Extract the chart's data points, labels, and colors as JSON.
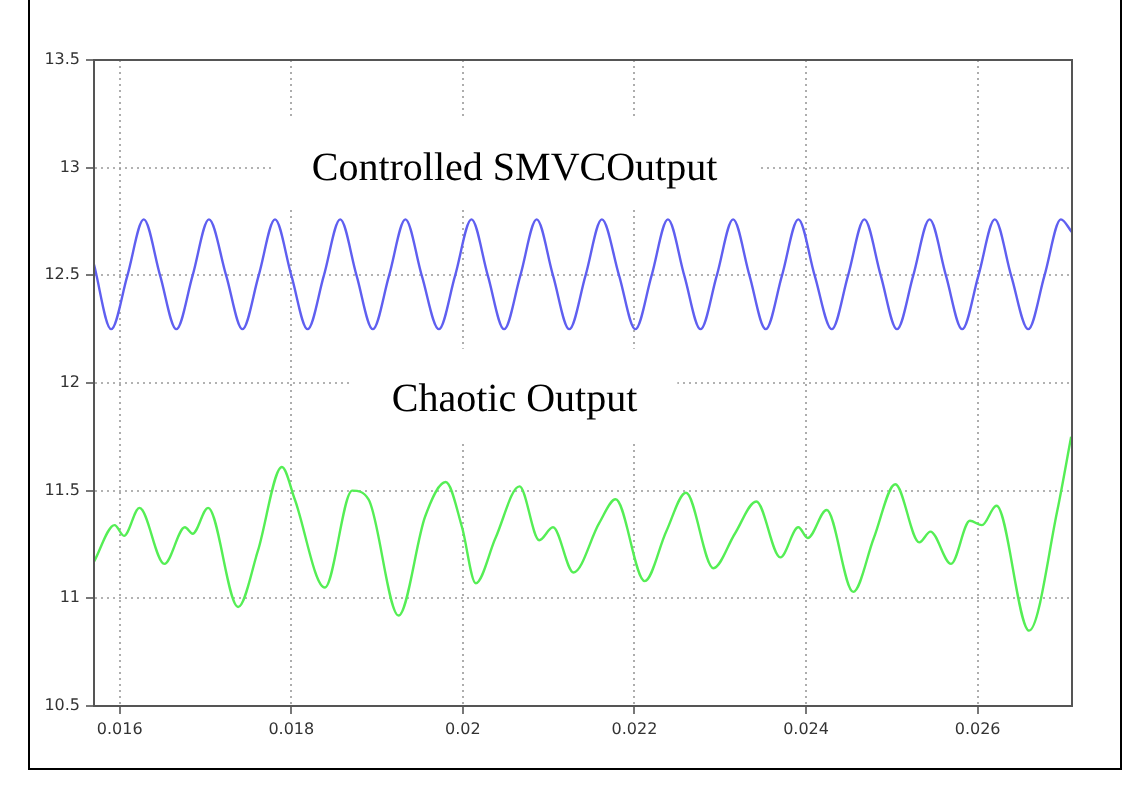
{
  "chart_data": {
    "type": "line",
    "xlim": [
      0.0157,
      0.0271
    ],
    "xticks": [
      0.016,
      0.018,
      0.02,
      0.022,
      0.024,
      0.026
    ],
    "ylim": [
      10.5,
      13.5
    ],
    "yticks": [
      10.5,
      11,
      11.5,
      12,
      12.5,
      13,
      13.5
    ],
    "grid": true,
    "legend": false,
    "marker": "none",
    "line_style": "solid",
    "annotations": [
      "Controlled SMVCOutput",
      "Chaotic Output"
    ],
    "series": [
      {
        "color": "#5f5ff0",
        "x": [
          0.0157,
          0.0159,
          0.01609,
          0.01628,
          0.01647,
          0.01666,
          0.01685,
          0.01704,
          0.01724,
          0.01743,
          0.01762,
          0.01781,
          0.018,
          0.01819,
          0.01838,
          0.01857,
          0.01876,
          0.01895,
          0.01914,
          0.01933,
          0.01952,
          0.01972,
          0.01991,
          0.0201,
          0.02029,
          0.02048,
          0.02067,
          0.02086,
          0.02105,
          0.02124,
          0.02143,
          0.02162,
          0.02182,
          0.02201,
          0.0222,
          0.02239,
          0.02258,
          0.02277,
          0.02296,
          0.02315,
          0.02334,
          0.02353,
          0.02372,
          0.02391,
          0.0241,
          0.0243,
          0.02449,
          0.02468,
          0.02487,
          0.02506,
          0.02525,
          0.02544,
          0.02563,
          0.02582,
          0.02601,
          0.0262,
          0.02639,
          0.02659,
          0.02678,
          0.02697,
          0.0271
        ],
        "values": [
          12.55,
          12.25,
          12.5,
          12.76,
          12.5,
          12.25,
          12.5,
          12.76,
          12.5,
          12.25,
          12.5,
          12.76,
          12.5,
          12.25,
          12.5,
          12.76,
          12.5,
          12.25,
          12.5,
          12.76,
          12.5,
          12.25,
          12.5,
          12.76,
          12.5,
          12.25,
          12.5,
          12.76,
          12.5,
          12.25,
          12.5,
          12.76,
          12.5,
          12.25,
          12.5,
          12.76,
          12.5,
          12.25,
          12.5,
          12.76,
          12.5,
          12.25,
          12.5,
          12.76,
          12.5,
          12.25,
          12.5,
          12.76,
          12.5,
          12.25,
          12.5,
          12.76,
          12.5,
          12.25,
          12.5,
          12.76,
          12.5,
          12.25,
          12.5,
          12.76,
          12.7
        ]
      },
      {
        "color": "#55ee55",
        "x": [
          0.0157,
          0.01594,
          0.01605,
          0.01623,
          0.01652,
          0.01676,
          0.01685,
          0.01703,
          0.01738,
          0.01761,
          0.01789,
          0.01804,
          0.01839,
          0.01871,
          0.0189,
          0.01925,
          0.01956,
          0.0198,
          0.01999,
          0.02015,
          0.02038,
          0.02066,
          0.02089,
          0.02105,
          0.02129,
          0.02159,
          0.02178,
          0.02212,
          0.02237,
          0.0226,
          0.02292,
          0.02317,
          0.02342,
          0.0237,
          0.02391,
          0.02402,
          0.02424,
          0.02455,
          0.02479,
          0.02504,
          0.02532,
          0.02545,
          0.02569,
          0.02591,
          0.02605,
          0.02622,
          0.0266,
          0.02693,
          0.02709
        ],
        "values": [
          11.17,
          11.34,
          11.29,
          11.42,
          11.16,
          11.33,
          11.3,
          11.42,
          10.96,
          11.22,
          11.61,
          11.46,
          11.05,
          11.5,
          11.46,
          10.92,
          11.38,
          11.54,
          11.33,
          11.07,
          11.28,
          11.52,
          11.27,
          11.33,
          11.12,
          11.35,
          11.46,
          11.08,
          11.31,
          11.49,
          11.14,
          11.3,
          11.45,
          11.19,
          11.33,
          11.28,
          11.41,
          11.03,
          11.28,
          11.53,
          11.26,
          11.31,
          11.16,
          11.36,
          11.34,
          11.43,
          10.85,
          11.41,
          11.75
        ]
      }
    ]
  }
}
